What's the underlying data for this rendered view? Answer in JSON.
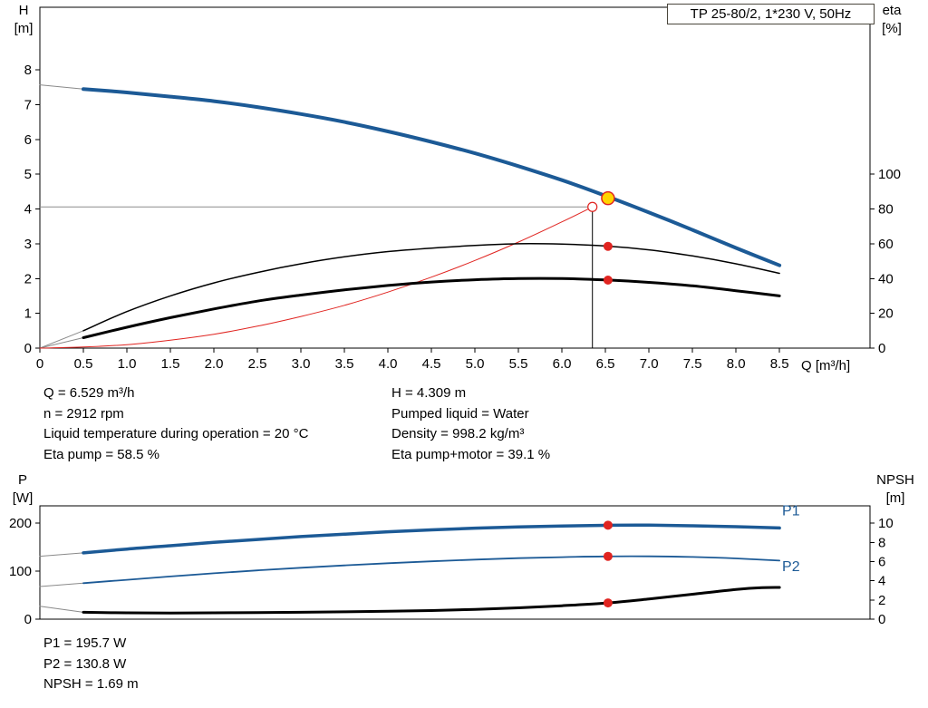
{
  "header": {
    "title_box": "TP 25-80/2, 1*230 V, 50Hz"
  },
  "info_panel": {
    "left": [
      "Q = 6.529 m³/h",
      "n = 2912 rpm",
      "Liquid temperature during operation = 20 °C",
      "Eta pump = 58.5 %"
    ],
    "right": [
      "H = 4.309 m",
      "Pumped liquid = Water",
      "Density = 998.2 kg/m³",
      "Eta pump+motor = 39.1 %"
    ]
  },
  "results_panel": [
    "P1 = 195.7 W",
    "P2 = 130.8 W",
    "NPSH = 1.69 m"
  ],
  "colors": {
    "curve_blue": "#1c5a96",
    "curve_black": "#000000",
    "marker_red": "#e02420",
    "operating_yellow": "#ffd400",
    "lead_gray": "#8a8a8a",
    "guide_gray": "#8c8c8c"
  },
  "chart_data": [
    {
      "type": "line",
      "title": "TP 25-80/2, 1*230 V, 50Hz",
      "x_axis": {
        "label": "Q [m³/h]",
        "min": 0,
        "max": 9.54,
        "ticks": [
          {
            "v": 0,
            "label": "0"
          },
          {
            "v": 0.5,
            "label": "0.5"
          },
          {
            "v": 1,
            "label": "1.0"
          },
          {
            "v": 1.5,
            "label": "1.5"
          },
          {
            "v": 2,
            "label": "2.0"
          },
          {
            "v": 2.5,
            "label": "2.5"
          },
          {
            "v": 3,
            "label": "3.0"
          },
          {
            "v": 3.5,
            "label": "3.5"
          },
          {
            "v": 4,
            "label": "4.0"
          },
          {
            "v": 4.5,
            "label": "4.5"
          },
          {
            "v": 5,
            "label": "5.0"
          },
          {
            "v": 5.5,
            "label": "5.5"
          },
          {
            "v": 6,
            "label": "6.0"
          },
          {
            "v": 6.5,
            "label": "6.5"
          },
          {
            "v": 7,
            "label": "7.0"
          },
          {
            "v": 7.5,
            "label": "7.5"
          },
          {
            "v": 8,
            "label": "8.0"
          },
          {
            "v": 8.5,
            "label": "8.5"
          }
        ]
      },
      "y_left": {
        "label": "H [m]",
        "label_lines": [
          "H",
          "[m]"
        ],
        "min": 0,
        "max": 9.8,
        "ticks": [
          {
            "v": 0,
            "label": "0"
          },
          {
            "v": 1,
            "label": "1"
          },
          {
            "v": 2,
            "label": "2"
          },
          {
            "v": 3,
            "label": "3"
          },
          {
            "v": 4,
            "label": "4"
          },
          {
            "v": 5,
            "label": "5"
          },
          {
            "v": 6,
            "label": "6"
          },
          {
            "v": 7,
            "label": "7"
          },
          {
            "v": 8,
            "label": "8"
          }
        ]
      },
      "y_right": {
        "label": "eta [%]",
        "label_lines": [
          "eta",
          "[%]"
        ],
        "min": 0,
        "max": 196,
        "ticks": [
          {
            "v": 0,
            "label": "0"
          },
          {
            "v": 20,
            "label": "20"
          },
          {
            "v": 40,
            "label": "40"
          },
          {
            "v": 60,
            "label": "60"
          },
          {
            "v": 80,
            "label": "80"
          },
          {
            "v": 100,
            "label": "100"
          }
        ]
      },
      "guides": [
        {
          "name": "duty-head-line",
          "x1": 0,
          "y1": 4.06,
          "x2": 6.35,
          "y2": 4.06,
          "axis": "left",
          "color": "#8c8c8c",
          "width": 1
        },
        {
          "name": "duty-flow-line",
          "x1": 6.35,
          "y1": 0,
          "x2": 6.35,
          "y2": 4.06,
          "axis": "left",
          "color": "#000000",
          "width": 1
        }
      ],
      "series": [
        {
          "name": "pump-curve-lead",
          "axis": "left",
          "color": "#8a8a8a",
          "width": 1,
          "points": [
            [
              0,
              7.57
            ],
            [
              0.5,
              7.45
            ]
          ]
        },
        {
          "name": "eta-pump-lead",
          "axis": "right",
          "color": "#8a8a8a",
          "width": 1,
          "points": [
            [
              0,
              0
            ],
            [
              0.5,
              10
            ]
          ]
        },
        {
          "name": "eta-pump-motor-lead",
          "axis": "right",
          "color": "#8a8a8a",
          "width": 1,
          "points": [
            [
              0,
              0
            ],
            [
              0.5,
              6
            ]
          ]
        },
        {
          "name": "system-curve",
          "axis": "left",
          "color": "#e02420",
          "width": 1,
          "points": [
            [
              0,
              0
            ],
            [
              0.5,
              0.03
            ],
            [
              1,
              0.1
            ],
            [
              1.5,
              0.23
            ],
            [
              2,
              0.4
            ],
            [
              2.5,
              0.63
            ],
            [
              3,
              0.91
            ],
            [
              3.5,
              1.23
            ],
            [
              4,
              1.61
            ],
            [
              4.5,
              2.04
            ],
            [
              5,
              2.52
            ],
            [
              5.5,
              3.05
            ],
            [
              6,
              3.63
            ],
            [
              6.35,
              4.06
            ]
          ]
        },
        {
          "name": "eta-pump-curve",
          "axis": "right",
          "color": "#000000",
          "width": 1.5,
          "points": [
            [
              0.5,
              10
            ],
            [
              1,
              21
            ],
            [
              1.5,
              30
            ],
            [
              2,
              37.5
            ],
            [
              2.5,
              43.5
            ],
            [
              3,
              48.5
            ],
            [
              3.5,
              52.5
            ],
            [
              4,
              55.5
            ],
            [
              4.5,
              57.5
            ],
            [
              5,
              59
            ],
            [
              5.5,
              60
            ],
            [
              6,
              59.8
            ],
            [
              6.5,
              58.7
            ],
            [
              7,
              56.5
            ],
            [
              7.5,
              53
            ],
            [
              8,
              48.5
            ],
            [
              8.5,
              43
            ]
          ]
        },
        {
          "name": "eta-pump-motor-curve",
          "axis": "right",
          "color": "#000000",
          "width": 3,
          "points": [
            [
              0.5,
              6
            ],
            [
              1,
              12
            ],
            [
              1.5,
              17.5
            ],
            [
              2,
              22.5
            ],
            [
              2.5,
              27
            ],
            [
              3,
              30.5
            ],
            [
              3.5,
              33.5
            ],
            [
              4,
              36
            ],
            [
              4.5,
              38
            ],
            [
              5,
              39.3
            ],
            [
              5.5,
              40
            ],
            [
              6,
              40
            ],
            [
              6.5,
              39.2
            ],
            [
              7,
              37.8
            ],
            [
              7.5,
              35.8
            ],
            [
              8,
              33
            ],
            [
              8.5,
              30
            ]
          ]
        },
        {
          "name": "pump-qh-curve",
          "axis": "left",
          "color": "#1c5a96",
          "width": 4,
          "points": [
            [
              0.5,
              7.45
            ],
            [
              1,
              7.35
            ],
            [
              1.5,
              7.23
            ],
            [
              2,
              7.1
            ],
            [
              2.5,
              6.93
            ],
            [
              3,
              6.73
            ],
            [
              3.5,
              6.5
            ],
            [
              4,
              6.23
            ],
            [
              4.5,
              5.93
            ],
            [
              5,
              5.6
            ],
            [
              5.5,
              5.23
            ],
            [
              6,
              4.83
            ],
            [
              6.5,
              4.38
            ],
            [
              7,
              3.9
            ],
            [
              7.5,
              3.4
            ],
            [
              8,
              2.88
            ],
            [
              8.5,
              2.38
            ]
          ]
        }
      ],
      "markers": [
        {
          "name": "duty-point-open",
          "x": 6.35,
          "y": 4.06,
          "axis": "left",
          "r": 5,
          "fill": "#ffffff",
          "stroke": "#e02420",
          "stroke_width": 1.2
        },
        {
          "name": "operating-point",
          "x": 6.529,
          "y": 4.309,
          "axis": "left",
          "r": 7,
          "fill": "#ffd400",
          "stroke": "#e02420",
          "stroke_width": 1.5
        },
        {
          "name": "eta-pump-point",
          "x": 6.529,
          "y": 58.5,
          "axis": "right",
          "r": 5,
          "fill": "#e02420"
        },
        {
          "name": "eta-pump-motor-point",
          "x": 6.529,
          "y": 39.1,
          "axis": "right",
          "r": 5,
          "fill": "#e02420"
        }
      ],
      "labels": []
    },
    {
      "type": "line",
      "title": "Power and NPSH curves",
      "x_axis": {
        "label": null,
        "min": 0,
        "max": 9.54,
        "ticks": []
      },
      "y_left": {
        "label": "P [W]",
        "label_lines": [
          "P",
          "[W]"
        ],
        "min": 0,
        "max": 236,
        "ticks": [
          {
            "v": 0,
            "label": "0"
          },
          {
            "v": 100,
            "label": "100"
          },
          {
            "v": 200,
            "label": "200"
          }
        ]
      },
      "y_right": {
        "label": "NPSH [m]",
        "label_lines": [
          "NPSH",
          "[m]"
        ],
        "min": 0,
        "max": 11.8,
        "ticks": [
          {
            "v": 0,
            "label": "0"
          },
          {
            "v": 2,
            "label": "2"
          },
          {
            "v": 4,
            "label": "4"
          },
          {
            "v": 6,
            "label": "6"
          },
          {
            "v": 8,
            "label": "8"
          },
          {
            "v": 10,
            "label": "10"
          }
        ]
      },
      "guides": [],
      "series": [
        {
          "name": "p1-lead",
          "axis": "left",
          "color": "#8a8a8a",
          "width": 1,
          "points": [
            [
              0,
              131
            ],
            [
              0.5,
              138
            ]
          ]
        },
        {
          "name": "p2-lead",
          "axis": "left",
          "color": "#8a8a8a",
          "width": 1,
          "points": [
            [
              0,
              68
            ],
            [
              0.5,
              75
            ]
          ]
        },
        {
          "name": "npsh-lead",
          "axis": "right",
          "color": "#8a8a8a",
          "width": 1,
          "points": [
            [
              0,
              1.35
            ],
            [
              0.5,
              0.72
            ]
          ]
        },
        {
          "name": "npsh-curve",
          "axis": "right",
          "color": "#000000",
          "width": 3,
          "points": [
            [
              0.5,
              0.72
            ],
            [
              1,
              0.66
            ],
            [
              1.5,
              0.64
            ],
            [
              2,
              0.66
            ],
            [
              2.5,
              0.69
            ],
            [
              3,
              0.72
            ],
            [
              3.5,
              0.76
            ],
            [
              4,
              0.82
            ],
            [
              4.5,
              0.9
            ],
            [
              5,
              1.02
            ],
            [
              5.5,
              1.18
            ],
            [
              6,
              1.4
            ],
            [
              6.5,
              1.67
            ],
            [
              7,
              2.1
            ],
            [
              7.5,
              2.6
            ],
            [
              8,
              3.1
            ],
            [
              8.3,
              3.28
            ],
            [
              8.5,
              3.3
            ]
          ]
        },
        {
          "name": "p2-curve",
          "axis": "left",
          "color": "#1c5a96",
          "width": 1.8,
          "points": [
            [
              0.5,
              75
            ],
            [
              1,
              82
            ],
            [
              1.5,
              89
            ],
            [
              2,
              95.5
            ],
            [
              2.5,
              101.5
            ],
            [
              3,
              107
            ],
            [
              3.5,
              112
            ],
            [
              4,
              116.5
            ],
            [
              4.5,
              120.5
            ],
            [
              5,
              124
            ],
            [
              5.5,
              127
            ],
            [
              6,
              129.2
            ],
            [
              6.5,
              130.7
            ],
            [
              7,
              130.8
            ],
            [
              7.5,
              129.5
            ],
            [
              8,
              126.5
            ],
            [
              8.5,
              122
            ]
          ]
        },
        {
          "name": "p1-curve",
          "axis": "left",
          "color": "#1c5a96",
          "width": 3.5,
          "points": [
            [
              0.5,
              138
            ],
            [
              1,
              146
            ],
            [
              1.5,
              153
            ],
            [
              2,
              160
            ],
            [
              2.5,
              166
            ],
            [
              3,
              172
            ],
            [
              3.5,
              177
            ],
            [
              4,
              182
            ],
            [
              4.5,
              186
            ],
            [
              5,
              189.5
            ],
            [
              5.5,
              192
            ],
            [
              6,
              194
            ],
            [
              6.5,
              195.5
            ],
            [
              7,
              195.8
            ],
            [
              7.5,
              194.5
            ],
            [
              8,
              192.5
            ],
            [
              8.5,
              190
            ]
          ]
        }
      ],
      "markers": [
        {
          "name": "p1-point",
          "x": 6.529,
          "y": 195.7,
          "axis": "left",
          "r": 5,
          "fill": "#e02420"
        },
        {
          "name": "p2-point",
          "x": 6.529,
          "y": 130.8,
          "axis": "left",
          "r": 5,
          "fill": "#e02420"
        },
        {
          "name": "npsh-point",
          "x": 6.529,
          "y": 1.69,
          "axis": "right",
          "r": 5,
          "fill": "#e02420"
        }
      ],
      "labels": [
        {
          "name": "p1-label",
          "text": "P1",
          "x": 8.53,
          "y": 216,
          "axis": "left",
          "color": "#1c5a96"
        },
        {
          "name": "p2-label",
          "text": "P2",
          "x": 8.53,
          "y": 100,
          "axis": "left",
          "color": "#1c5a96"
        }
      ]
    }
  ]
}
